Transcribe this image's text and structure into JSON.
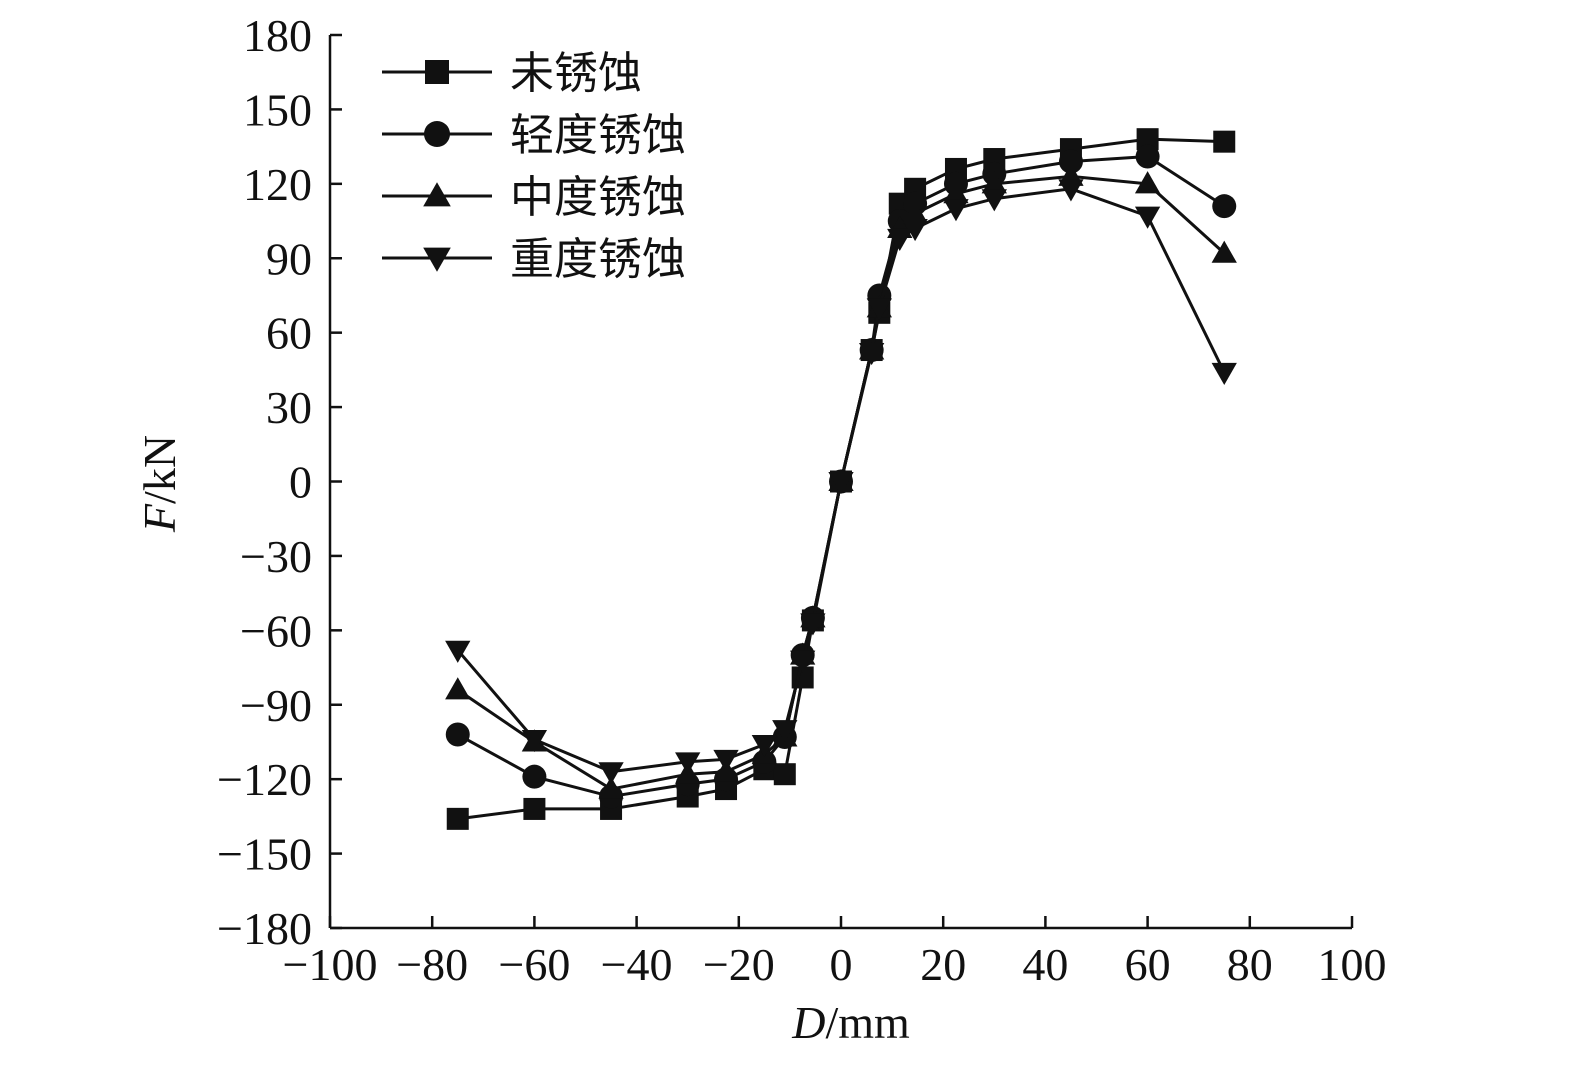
{
  "chart_data": {
    "type": "line",
    "xlabel_italic": "D",
    "xlabel_unit": "/mm",
    "ylabel_italic": "F",
    "ylabel_unit": "/kN",
    "xlim": [
      -100,
      100
    ],
    "ylim": [
      -180,
      180
    ],
    "xticks": [
      -100,
      -80,
      -60,
      -40,
      -20,
      0,
      20,
      40,
      60,
      80,
      100
    ],
    "yticks": [
      -180,
      -150,
      -120,
      -90,
      -60,
      -30,
      0,
      30,
      60,
      90,
      120,
      150,
      180
    ],
    "grid": false,
    "legend_position": "top-left",
    "series": [
      {
        "name": "未锈蚀",
        "marker": "square",
        "points": [
          [
            -75,
            -136
          ],
          [
            -60,
            -132
          ],
          [
            -45,
            -132
          ],
          [
            -30,
            -127
          ],
          [
            -22.5,
            -124
          ],
          [
            -15,
            -116
          ],
          [
            -11,
            -118
          ],
          [
            -7.5,
            -79
          ],
          [
            -5.5,
            -56
          ],
          [
            0,
            0
          ],
          [
            6,
            53
          ],
          [
            7.5,
            68
          ],
          [
            11.5,
            112
          ],
          [
            14.5,
            118
          ],
          [
            22.5,
            126
          ],
          [
            30,
            130
          ],
          [
            45,
            134
          ],
          [
            60,
            138
          ],
          [
            75,
            137
          ]
        ]
      },
      {
        "name": "轻度锈蚀",
        "marker": "circle",
        "points": [
          [
            -75,
            -102
          ],
          [
            -60,
            -119
          ],
          [
            -45,
            -127
          ],
          [
            -30,
            -122
          ],
          [
            -22.5,
            -120
          ],
          [
            -15,
            -113
          ],
          [
            -11,
            -103
          ],
          [
            -7.5,
            -70
          ],
          [
            -5.5,
            -55
          ],
          [
            0,
            0
          ],
          [
            6,
            53
          ],
          [
            7.5,
            75
          ],
          [
            11.5,
            105
          ],
          [
            14.5,
            112
          ],
          [
            22.5,
            120
          ],
          [
            30,
            124
          ],
          [
            45,
            129
          ],
          [
            60,
            131
          ],
          [
            75,
            111
          ]
        ]
      },
      {
        "name": "中度锈蚀",
        "marker": "triangle-up",
        "points": [
          [
            -75,
            -84
          ],
          [
            -60,
            -105
          ],
          [
            -45,
            -124
          ],
          [
            -30,
            -118
          ],
          [
            -22.5,
            -117
          ],
          [
            -15,
            -110
          ],
          [
            -11,
            -103
          ],
          [
            -7.5,
            -70
          ],
          [
            -5.5,
            -55
          ],
          [
            0,
            0
          ],
          [
            6,
            53
          ],
          [
            7.5,
            70
          ],
          [
            11.5,
            102
          ],
          [
            14.5,
            108
          ],
          [
            22.5,
            116
          ],
          [
            30,
            120
          ],
          [
            45,
            123
          ],
          [
            60,
            120
          ],
          [
            75,
            92
          ]
        ]
      },
      {
        "name": "重度锈蚀",
        "marker": "triangle-down",
        "points": [
          [
            -75,
            -68
          ],
          [
            -60,
            -104
          ],
          [
            -45,
            -117
          ],
          [
            -30,
            -113
          ],
          [
            -22.5,
            -112
          ],
          [
            -15,
            -106
          ],
          [
            -11,
            -100
          ],
          [
            -7.5,
            -72
          ],
          [
            -5.5,
            -57
          ],
          [
            0,
            0
          ],
          [
            6,
            52
          ],
          [
            7.5,
            70
          ],
          [
            11.5,
            98
          ],
          [
            14.5,
            102
          ],
          [
            22.5,
            110
          ],
          [
            30,
            114
          ],
          [
            45,
            118
          ],
          [
            60,
            107
          ],
          [
            75,
            44
          ]
        ]
      }
    ]
  }
}
